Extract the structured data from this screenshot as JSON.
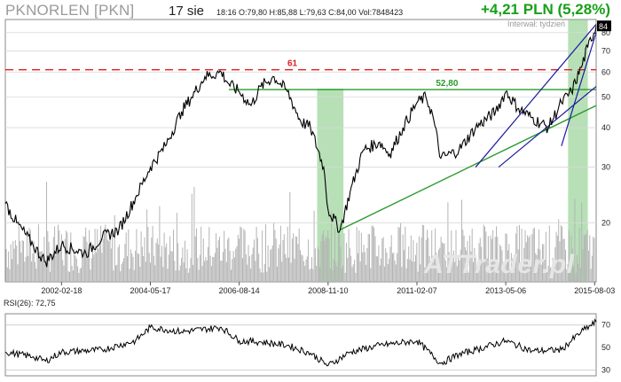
{
  "header": {
    "ticker": "PKNORLEN [PKN]",
    "date": "17 sie",
    "stats": "18:16  O:79,80  H:85,88  L:79,63  C:84,00  Vol:7848423",
    "change": "+4,21 PLN (5,28%)",
    "interval": "Interwał: tydzień"
  },
  "watermark": "ATTrader.pl",
  "colors": {
    "price": "#000000",
    "volume": "#b4b4b4",
    "resistance_dashed": "#e02020",
    "horizontal_level": "#2a9a2a",
    "trendline": "#2a9a2a",
    "channel": "#1a1aa0",
    "highlight": "#7cc77c",
    "grid": "#d8d8d8",
    "rsi_bands": "#c0c0c0"
  },
  "chart_data": [
    {
      "type": "line",
      "name": "price",
      "y_scale": "log",
      "ylim": [
        13,
        88
      ],
      "y_ticks": [
        20,
        30,
        40,
        50,
        60,
        70,
        80
      ],
      "x_tick_labels": [
        "2002-02-18",
        "2004-05-17",
        "2006-08-14",
        "2008-11-10",
        "2011-02-07",
        "2013-05-06",
        "2015-08-03"
      ],
      "x_range": [
        "2000-09-18",
        "2015-08-17"
      ],
      "last_value": 84,
      "last_value_label": "84",
      "series": [
        {
          "x": [
            "2000-09-18",
            "2001-01-01",
            "2001-06-01",
            "2001-09-24",
            "2002-02-18",
            "2002-10-01",
            "2003-03-01",
            "2003-08-01",
            "2004-01-01",
            "2004-05-17",
            "2004-10-01",
            "2005-03-01",
            "2005-06-01",
            "2005-10-01",
            "2006-03-01",
            "2006-05-10",
            "2006-08-14",
            "2006-12-01",
            "2007-03-01",
            "2007-07-01",
            "2007-11-01",
            "2008-03-01",
            "2008-06-01",
            "2008-10-01",
            "2008-11-10",
            "2009-03-01",
            "2009-06-01",
            "2009-10-01",
            "2010-03-01",
            "2010-06-01",
            "2010-10-01",
            "2011-02-07",
            "2011-05-01",
            "2011-07-01",
            "2011-09-15",
            "2012-03-01",
            "2012-08-01",
            "2013-02-01",
            "2013-05-06",
            "2013-09-01",
            "2014-01-01",
            "2014-06-01",
            "2014-10-01",
            "2015-01-01",
            "2015-04-01",
            "2015-06-01",
            "2015-08-17"
          ],
          "values": [
            23,
            20,
            17,
            15,
            17,
            16,
            18,
            19,
            24,
            30,
            35,
            45,
            50,
            58,
            60,
            55,
            52,
            47,
            54,
            58,
            52,
            42,
            40,
            30,
            22,
            19,
            25,
            34,
            36,
            33,
            40,
            48,
            50,
            44,
            32,
            34,
            40,
            45,
            52,
            46,
            43,
            40,
            48,
            52,
            62,
            72,
            84
          ]
        }
      ]
    },
    {
      "type": "bar",
      "name": "volume",
      "note": "weekly volume bars drawn behind price"
    },
    {
      "type": "line",
      "name": "RSI(26)",
      "label": "RSI(26): 72,75",
      "ylim": [
        25,
        80
      ],
      "y_ticks": [
        30,
        50,
        70
      ],
      "band_lines": [
        30,
        70
      ],
      "series": [
        {
          "x": [
            "2000-09-18",
            "2001-06-01",
            "2001-09-24",
            "2002-02-18",
            "2003-03-01",
            "2004-01-01",
            "2004-05-17",
            "2005-03-01",
            "2006-03-01",
            "2006-08-14",
            "2007-03-01",
            "2007-11-01",
            "2008-06-01",
            "2008-11-10",
            "2009-06-01",
            "2010-03-01",
            "2011-02-07",
            "2011-09-15",
            "2012-03-01",
            "2012-08-01",
            "2013-05-06",
            "2014-01-01",
            "2014-10-01",
            "2015-04-01",
            "2015-08-17"
          ],
          "values": [
            46,
            42,
            38,
            46,
            48,
            56,
            68,
            64,
            68,
            56,
            55,
            52,
            45,
            34,
            46,
            52,
            56,
            36,
            44,
            48,
            56,
            47,
            48,
            64,
            72.75
          ]
        }
      ]
    }
  ],
  "annotations": {
    "resistance_dashed_label": "61",
    "resistance_dashed_value": 61,
    "horizontal_level_label": "52,80",
    "horizontal_level_value": 52.8
  }
}
